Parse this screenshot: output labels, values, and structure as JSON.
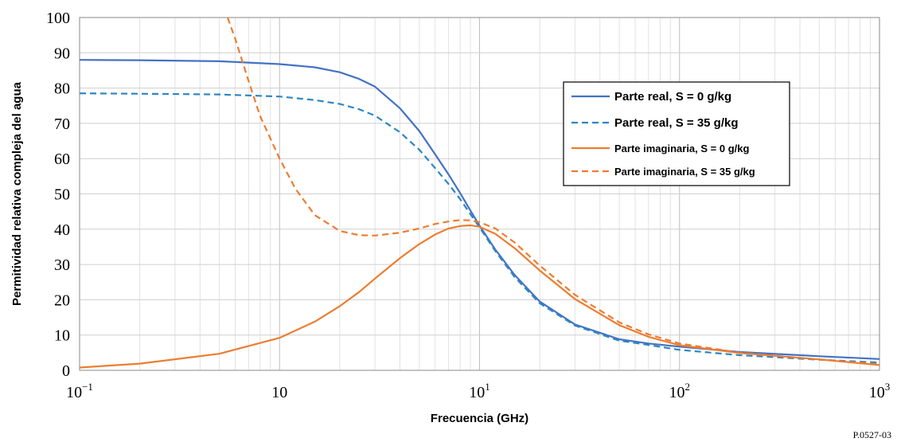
{
  "figure_id": "P.0527-03",
  "chart_data": {
    "type": "line",
    "xlabel": "Frecuencia (GHz)",
    "ylabel": "Permitividad relativa compleja del agua",
    "x_scale": "log",
    "xlim": [
      0.1,
      1000
    ],
    "ylim": [
      0,
      100
    ],
    "grid": true,
    "legend_position": "top-right",
    "x_tick_labels": [
      {
        "base": "10",
        "exp": "−1"
      },
      {
        "base": "10",
        "exp": ""
      },
      {
        "base": "10",
        "exp": "1"
      },
      {
        "base": "10",
        "exp": "2"
      },
      {
        "base": "10",
        "exp": "3"
      }
    ],
    "y_ticks": [
      0,
      10,
      20,
      30,
      40,
      50,
      60,
      70,
      80,
      90,
      100
    ],
    "series": [
      {
        "name": "Parte real, S = 0 g/kg",
        "color": "#4472c4",
        "dash": "solid",
        "x": [
          0.1,
          0.2,
          0.5,
          1,
          1.5,
          2,
          2.5,
          3,
          4,
          5,
          6,
          7,
          8,
          9,
          10,
          12,
          15,
          20,
          30,
          50,
          70,
          100,
          200,
          500,
          1000
        ],
        "y": [
          88,
          87.9,
          87.6,
          86.8,
          85.9,
          84.5,
          82.6,
          80.4,
          74.3,
          67.8,
          61.2,
          55.5,
          50.2,
          45.3,
          41,
          34.2,
          27,
          19.5,
          13,
          8.8,
          7.6,
          6.7,
          5.2,
          4,
          3.2
        ]
      },
      {
        "name": "Parte real, S = 35 g/kg",
        "color": "#2e86c1",
        "dash": "dashed",
        "x": [
          0.1,
          0.2,
          0.5,
          1,
          1.5,
          2,
          2.5,
          3,
          4,
          5,
          6,
          7,
          8,
          9,
          10,
          12,
          15,
          20,
          30,
          50,
          70,
          100,
          200,
          500,
          1000
        ],
        "y": [
          78.5,
          78.4,
          78.2,
          77.6,
          76.6,
          75.5,
          74,
          72.2,
          67.5,
          62.5,
          57.3,
          52.8,
          48.5,
          44.3,
          40.5,
          33.8,
          26.4,
          19,
          12.7,
          8.4,
          7.2,
          5.8,
          4.3,
          3,
          2.2
        ]
      },
      {
        "name": "Parte imaginaria, S = 0 g/kg",
        "color": "#ed7d31",
        "dash": "solid",
        "x": [
          0.1,
          0.2,
          0.5,
          1,
          1.5,
          2,
          2.5,
          3,
          4,
          5,
          6,
          7,
          8,
          9,
          10,
          12,
          15,
          20,
          30,
          50,
          70,
          100,
          200,
          500,
          1000
        ],
        "y": [
          0.8,
          1.9,
          4.7,
          9.2,
          13.8,
          18.2,
          22.2,
          26,
          31.8,
          35.8,
          38.5,
          40.2,
          40.9,
          41.1,
          40.7,
          38.7,
          34.6,
          28.3,
          20.2,
          12.8,
          9.5,
          7.1,
          4.9,
          3.1,
          1.5
        ]
      },
      {
        "name": "Parte imaginaria, S = 35 g/kg",
        "color": "#ed7d31",
        "dash": "dashed",
        "x": [
          0.55,
          0.6,
          0.7,
          0.8,
          1,
          1.2,
          1.5,
          2,
          2.5,
          3,
          4,
          5,
          6,
          7,
          8,
          9,
          10,
          12,
          15,
          20,
          30,
          50,
          70,
          100,
          200,
          500,
          1000
        ],
        "y": [
          100,
          94,
          82,
          72,
          60,
          51.5,
          44,
          39.5,
          38.3,
          38.2,
          39,
          40.2,
          41.5,
          42.2,
          42.6,
          42.5,
          42,
          40.2,
          36.2,
          29.7,
          21.4,
          13.6,
          10.2,
          7.6,
          5,
          3.1,
          1.7
        ]
      }
    ]
  }
}
